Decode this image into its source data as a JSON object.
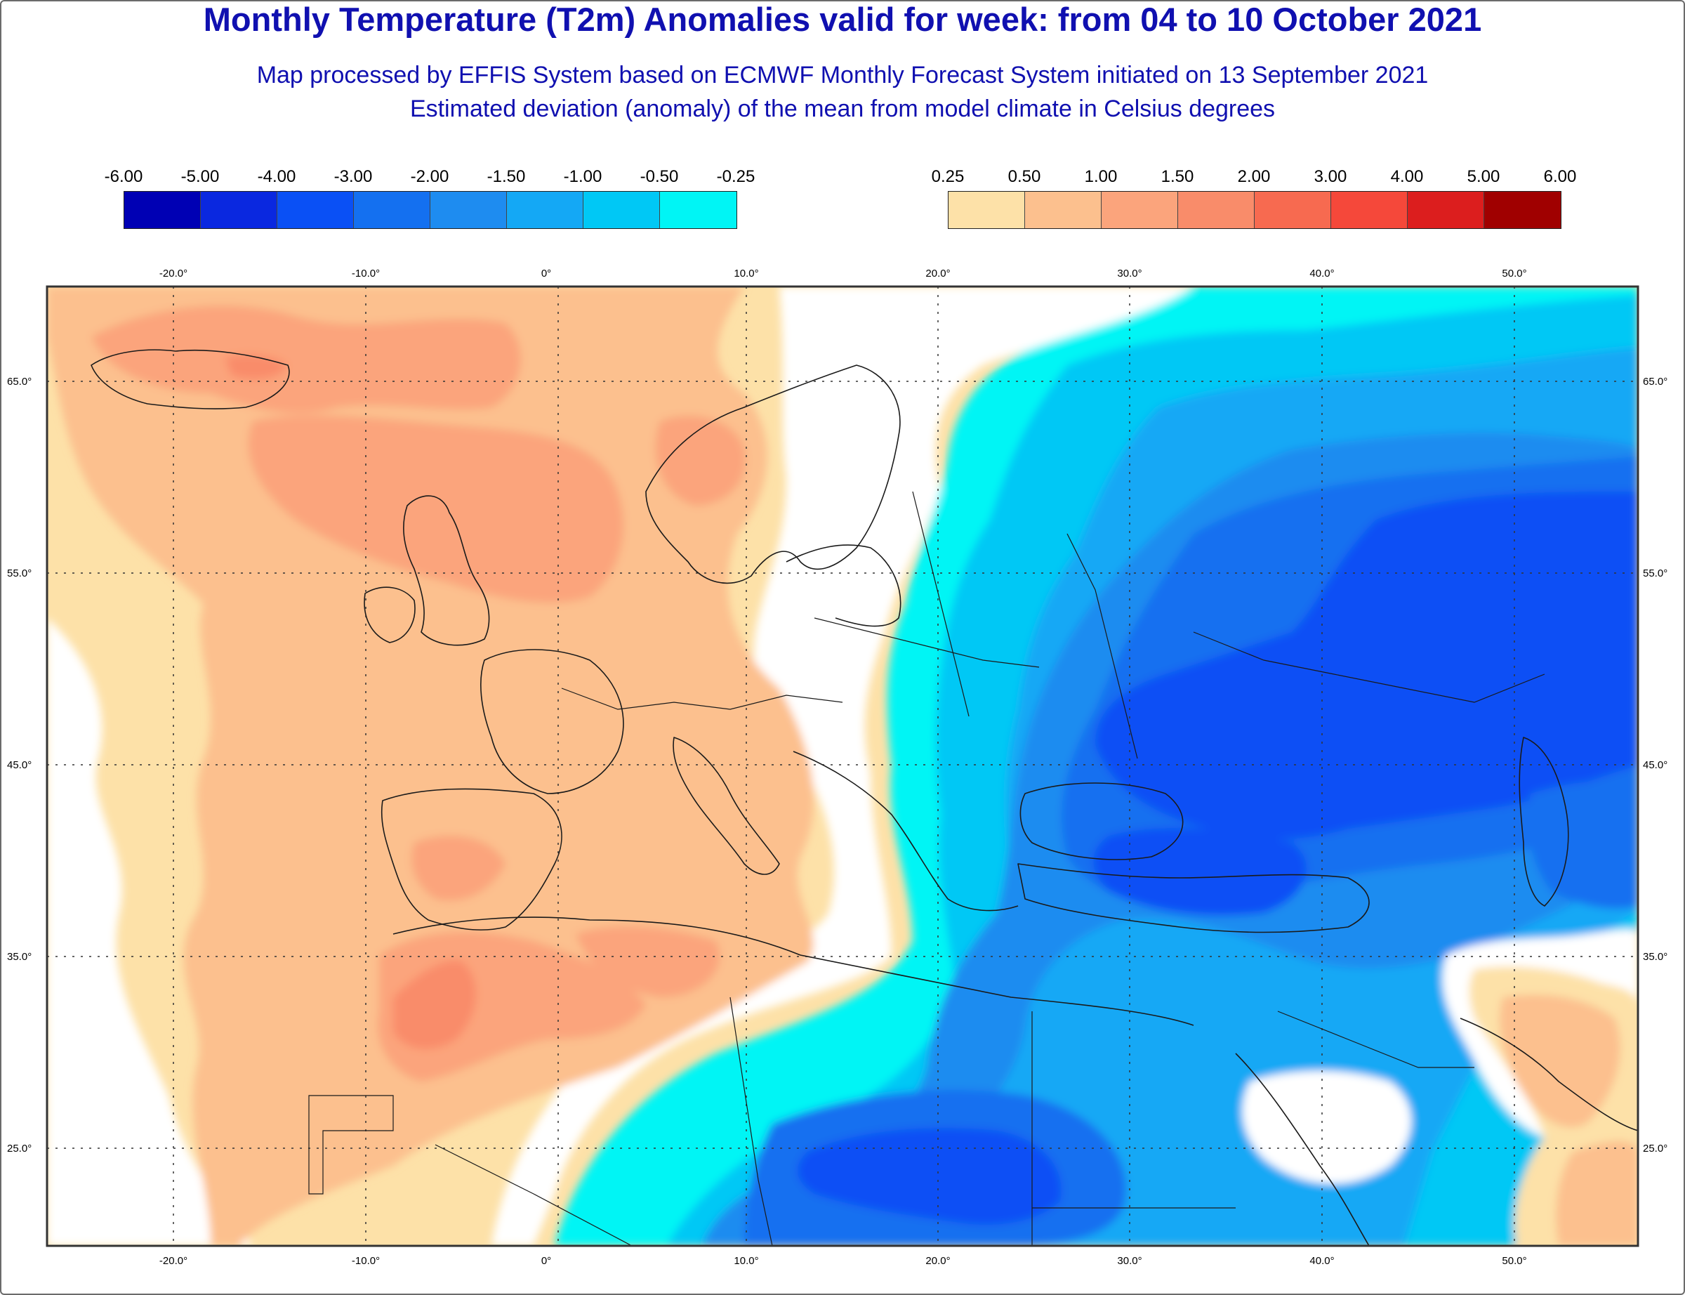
{
  "header": {
    "title": "Monthly Temperature (T2m) Anomalies valid for week: from 04 to 10 October 2021",
    "subtitle_1": "Map processed by EFFIS System based on ECMWF Monthly Forecast System initiated on 13 September 2021",
    "subtitle_2": "Estimated deviation (anomaly) of the mean from model climate in Celsius degrees"
  },
  "legend_negative": {
    "labels": [
      "-6.00",
      "-5.00",
      "-4.00",
      "-3.00",
      "-2.00",
      "-1.50",
      "-1.00",
      "-0.50",
      "-0.25"
    ],
    "colors": [
      "#0000b4",
      "#0a28e0",
      "#0a50f5",
      "#1470f0",
      "#1e8cf0",
      "#14a8f5",
      "#00c8f5",
      "#00f5f5"
    ]
  },
  "legend_positive": {
    "labels": [
      "0.25",
      "0.50",
      "1.00",
      "1.50",
      "2.00",
      "3.00",
      "4.00",
      "5.00",
      "6.00"
    ],
    "colors": [
      "#fde1a8",
      "#fcc08e",
      "#fba47c",
      "#f98c6a",
      "#f76a50",
      "#f5483a",
      "#dc1e1e",
      "#a00000"
    ]
  },
  "axes": {
    "longitude_labels": [
      "-20.0°",
      "-10.0°",
      "0°",
      "10.0°",
      "20.0°",
      "30.0°",
      "40.0°",
      "50.0°"
    ],
    "latitude_labels": [
      "65.0°",
      "55.0°",
      "45.0°",
      "35.0°",
      "25.0°"
    ]
  }
}
